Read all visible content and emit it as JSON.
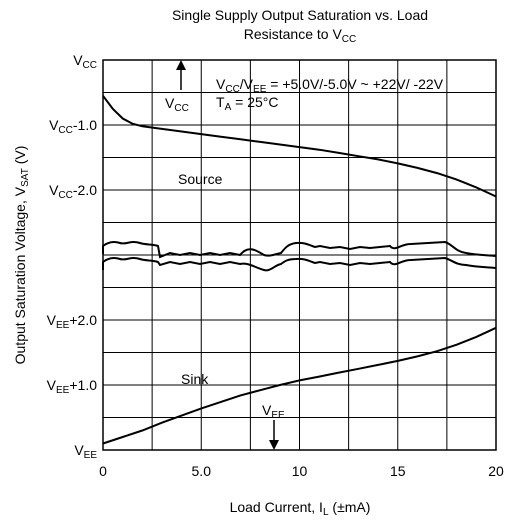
{
  "chart_data": {
    "type": "line",
    "title_line1": "Single Supply Output Saturation vs. Load",
    "title_line2_main": "Resistance to V",
    "title_line2_sub": "CC",
    "xlabel_main": "Load Current, I",
    "xlabel_sub": "L",
    "xlabel_unit": " (±mA)",
    "ylabel_main": "Output Saturation Voltage, V",
    "ylabel_sub": "SAT",
    "ylabel_unit": " (V)",
    "xlim": [
      0,
      20
    ],
    "x_ticks": [
      {
        "value": 0,
        "label": "0"
      },
      {
        "value": 5,
        "label": "5.0"
      },
      {
        "value": 10,
        "label": "10"
      },
      {
        "value": 15,
        "label": "15"
      },
      {
        "value": 20,
        "label": "20"
      }
    ],
    "y_ticks": [
      {
        "pos": 0,
        "main": "V",
        "sub": "EE",
        "suffix": ""
      },
      {
        "pos": 1,
        "main": "V",
        "sub": "EE",
        "suffix": "+1.0"
      },
      {
        "pos": 2,
        "main": "V",
        "sub": "EE",
        "suffix": "+2.0"
      },
      {
        "pos": 3,
        "main": "",
        "sub": "",
        "suffix": ""
      },
      {
        "pos": 4,
        "main": "V",
        "sub": "CC",
        "suffix": "-2.0"
      },
      {
        "pos": 5,
        "main": "V",
        "sub": "CC",
        "suffix": "-1.0"
      },
      {
        "pos": 6,
        "main": "V",
        "sub": "CC",
        "suffix": ""
      }
    ],
    "grid": true,
    "series": [
      {
        "name": "Source",
        "x": [
          0,
          0.5,
          1,
          1.5,
          2,
          3,
          4,
          5,
          6,
          7,
          8,
          9,
          10,
          11,
          12,
          13,
          14,
          15,
          16,
          17,
          18,
          19,
          20
        ],
        "y": [
          5.45,
          5.25,
          5.1,
          5.02,
          4.98,
          4.94,
          4.9,
          4.86,
          4.82,
          4.78,
          4.74,
          4.7,
          4.66,
          4.62,
          4.57,
          4.52,
          4.47,
          4.41,
          4.34,
          4.26,
          4.16,
          4.04,
          3.9
        ]
      },
      {
        "name": "Sink",
        "x": [
          0,
          1,
          2,
          3,
          4,
          5,
          6,
          7,
          8,
          9,
          10,
          11,
          12,
          13,
          14,
          15,
          16,
          17,
          18,
          19,
          20
        ],
        "y": [
          0.1,
          0.2,
          0.3,
          0.42,
          0.53,
          0.64,
          0.74,
          0.84,
          0.92,
          1.0,
          1.07,
          1.13,
          1.19,
          1.25,
          1.31,
          1.37,
          1.44,
          1.52,
          1.62,
          1.74,
          1.88
        ]
      }
    ],
    "annotations": {
      "source_label": "Source",
      "sink_label": "Sink",
      "vcc_arrow_main": "V",
      "vcc_arrow_sub": "CC",
      "vee_arrow_main": "V",
      "vee_arrow_sub": "EE",
      "cond1_main1": "V",
      "cond1_sub1": "CC",
      "cond1_mid": "/V",
      "cond1_sub2": "EE",
      "cond1_rest": " = +5.0V/-5.0V ~ +22V/ -22V",
      "cond2_main": "T",
      "cond2_sub": "A",
      "cond2_rest": " = 25°C"
    }
  }
}
